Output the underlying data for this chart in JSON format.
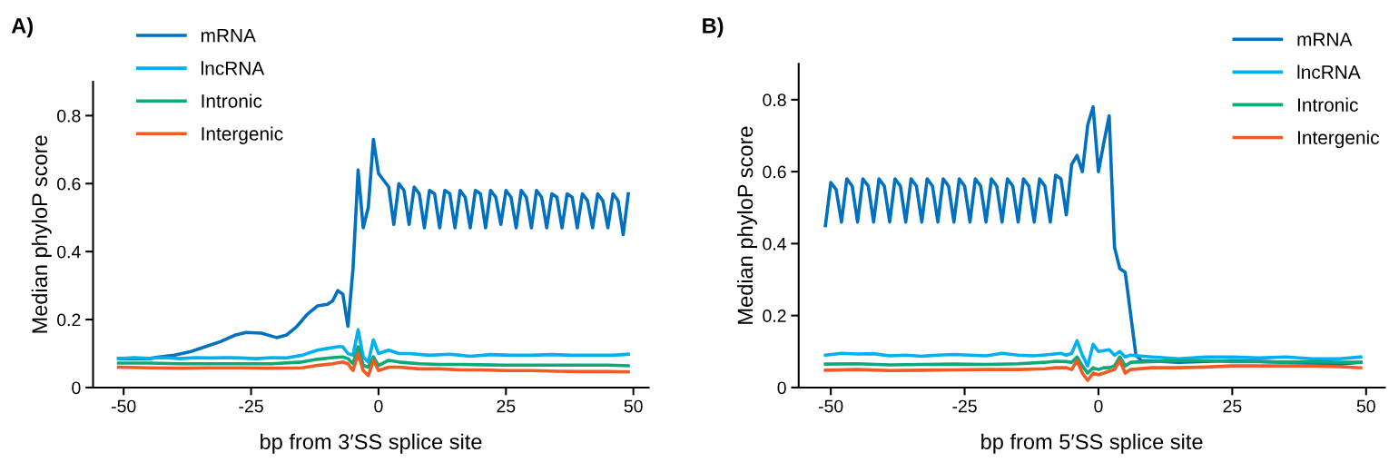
{
  "chart_data": [
    {
      "type": "line",
      "title": "A)",
      "xlabel": "bp from 3′SS splice site",
      "ylabel": "Median phyloP score",
      "xlim": [
        -56,
        53
      ],
      "ylim": [
        0,
        0.9
      ],
      "xticks": [
        -50,
        -25,
        0,
        25,
        50
      ],
      "yticks": [
        0,
        0.2,
        0.4,
        0.6,
        0.8
      ],
      "grid": false,
      "legend": "top left",
      "series": [
        {
          "name": "mRNA",
          "color": "#0070c0",
          "x": [
            -51,
            -45,
            -43,
            -40,
            -37,
            -34,
            -31,
            -28,
            -26,
            -23,
            -20,
            -18,
            -16,
            -14,
            -12,
            -10,
            -9,
            -8,
            -7,
            -6,
            -5,
            -4,
            -3,
            -2,
            -1,
            0,
            1,
            2,
            3,
            4,
            5,
            6,
            7,
            8,
            9,
            10,
            11,
            12,
            13,
            14,
            15,
            16,
            17,
            18,
            19,
            20,
            21,
            22,
            23,
            24,
            25,
            26,
            27,
            28,
            29,
            30,
            31,
            32,
            33,
            34,
            35,
            36,
            37,
            38,
            39,
            40,
            41,
            42,
            43,
            44,
            45,
            46,
            47,
            48,
            49
          ],
          "values": [
            0.085,
            0.085,
            0.09,
            0.095,
            0.105,
            0.12,
            0.135,
            0.155,
            0.162,
            0.16,
            0.147,
            0.155,
            0.18,
            0.215,
            0.24,
            0.245,
            0.255,
            0.285,
            0.275,
            0.18,
            0.35,
            0.64,
            0.47,
            0.53,
            0.73,
            0.63,
            0.61,
            0.59,
            0.48,
            0.6,
            0.58,
            0.48,
            0.59,
            0.57,
            0.47,
            0.58,
            0.57,
            0.47,
            0.58,
            0.57,
            0.47,
            0.58,
            0.56,
            0.47,
            0.58,
            0.57,
            0.47,
            0.58,
            0.56,
            0.48,
            0.58,
            0.56,
            0.47,
            0.58,
            0.56,
            0.47,
            0.58,
            0.56,
            0.47,
            0.57,
            0.56,
            0.47,
            0.57,
            0.56,
            0.47,
            0.57,
            0.55,
            0.47,
            0.57,
            0.55,
            0.47,
            0.57,
            0.55,
            0.45,
            0.57
          ]
        },
        {
          "name": "lncRNA",
          "color": "#00b0f0",
          "x": [
            -51,
            -48,
            -45,
            -42,
            -39,
            -36,
            -33,
            -30,
            -27,
            -24,
            -21,
            -18,
            -15,
            -12,
            -10,
            -8,
            -7,
            -6,
            -5,
            -4,
            -3,
            -2,
            -1,
            0,
            2,
            4,
            6,
            10,
            14,
            18,
            22,
            26,
            30,
            34,
            38,
            42,
            46,
            49
          ],
          "values": [
            0.085,
            0.088,
            0.086,
            0.088,
            0.085,
            0.088,
            0.087,
            0.088,
            0.087,
            0.085,
            0.088,
            0.087,
            0.095,
            0.11,
            0.115,
            0.12,
            0.12,
            0.1,
            0.095,
            0.17,
            0.09,
            0.075,
            0.14,
            0.1,
            0.11,
            0.1,
            0.1,
            0.095,
            0.098,
            0.092,
            0.097,
            0.095,
            0.095,
            0.097,
            0.095,
            0.095,
            0.095,
            0.098
          ]
        },
        {
          "name": "Intronic",
          "color": "#0fa878",
          "x": [
            -51,
            -45,
            -39,
            -33,
            -27,
            -21,
            -15,
            -12,
            -9,
            -7,
            -6,
            -5,
            -4,
            -3,
            -2,
            -1,
            0,
            2,
            4,
            8,
            12,
            16,
            20,
            25,
            30,
            35,
            40,
            45,
            49
          ],
          "values": [
            0.072,
            0.072,
            0.07,
            0.07,
            0.07,
            0.07,
            0.075,
            0.083,
            0.088,
            0.09,
            0.085,
            0.07,
            0.12,
            0.065,
            0.06,
            0.09,
            0.065,
            0.08,
            0.075,
            0.07,
            0.068,
            0.068,
            0.067,
            0.066,
            0.066,
            0.066,
            0.066,
            0.066,
            0.064
          ]
        },
        {
          "name": "Intergenic",
          "color": "#f15a22",
          "x": [
            -51,
            -45,
            -39,
            -33,
            -27,
            -21,
            -15,
            -12,
            -9,
            -7,
            -6,
            -5,
            -4,
            -3,
            -2,
            -1,
            0,
            2,
            4,
            8,
            12,
            16,
            20,
            25,
            30,
            35,
            40,
            45,
            49
          ],
          "values": [
            0.06,
            0.058,
            0.057,
            0.058,
            0.058,
            0.057,
            0.058,
            0.065,
            0.07,
            0.075,
            0.07,
            0.05,
            0.1,
            0.05,
            0.035,
            0.08,
            0.05,
            0.06,
            0.06,
            0.055,
            0.055,
            0.052,
            0.052,
            0.05,
            0.05,
            0.048,
            0.047,
            0.047,
            0.046
          ]
        }
      ]
    },
    {
      "type": "line",
      "title": "B)",
      "xlabel": "bp from 5′SS splice site",
      "ylabel": "Median phyloP score",
      "xlim": [
        -56,
        53.5
      ],
      "ylim": [
        0,
        0.9
      ],
      "xticks": [
        -50,
        -25,
        0,
        25,
        50
      ],
      "yticks": [
        0,
        0.2,
        0.4,
        0.6,
        0.8
      ],
      "grid": false,
      "legend": "top right",
      "series": [
        {
          "name": "mRNA",
          "color": "#0070c0",
          "x": [
            -51,
            -50,
            -49,
            -48,
            -47,
            -46,
            -45,
            -44,
            -43,
            -42,
            -41,
            -40,
            -39,
            -38,
            -37,
            -36,
            -35,
            -34,
            -33,
            -32,
            -31,
            -30,
            -29,
            -28,
            -27,
            -26,
            -25,
            -24,
            -23,
            -22,
            -21,
            -20,
            -19,
            -18,
            -17,
            -16,
            -15,
            -14,
            -13,
            -12,
            -11,
            -10,
            -9,
            -8,
            -7,
            -6,
            -5,
            -4,
            -3,
            -2,
            -1,
            0,
            1,
            2,
            3,
            4,
            5,
            7,
            8,
            15,
            25,
            35,
            45,
            49
          ],
          "values": [
            0.45,
            0.57,
            0.55,
            0.46,
            0.58,
            0.56,
            0.46,
            0.58,
            0.56,
            0.46,
            0.58,
            0.56,
            0.46,
            0.58,
            0.56,
            0.46,
            0.58,
            0.56,
            0.46,
            0.58,
            0.56,
            0.46,
            0.58,
            0.56,
            0.46,
            0.58,
            0.56,
            0.46,
            0.58,
            0.56,
            0.46,
            0.58,
            0.56,
            0.46,
            0.58,
            0.56,
            0.46,
            0.58,
            0.56,
            0.46,
            0.58,
            0.56,
            0.46,
            0.59,
            0.58,
            0.48,
            0.62,
            0.645,
            0.6,
            0.73,
            0.78,
            0.6,
            0.68,
            0.755,
            0.39,
            0.33,
            0.32,
            0.09,
            0.075,
            0.07,
            0.075,
            0.07,
            0.065,
            0.07
          ]
        },
        {
          "name": "lncRNA",
          "color": "#00b0f0",
          "x": [
            -51,
            -48,
            -45,
            -42,
            -39,
            -36,
            -33,
            -30,
            -27,
            -24,
            -21,
            -18,
            -15,
            -12,
            -9,
            -7,
            -6,
            -5,
            -4,
            -3,
            -2,
            -1,
            0,
            2,
            3,
            4,
            5,
            6,
            10,
            15,
            20,
            25,
            30,
            35,
            40,
            45,
            49
          ],
          "values": [
            0.09,
            0.095,
            0.093,
            0.094,
            0.088,
            0.09,
            0.087,
            0.09,
            0.092,
            0.09,
            0.088,
            0.095,
            0.09,
            0.088,
            0.092,
            0.095,
            0.09,
            0.095,
            0.13,
            0.09,
            0.06,
            0.12,
            0.1,
            0.105,
            0.09,
            0.1,
            0.085,
            0.09,
            0.085,
            0.08,
            0.085,
            0.085,
            0.082,
            0.085,
            0.08,
            0.08,
            0.085
          ]
        },
        {
          "name": "Intronic",
          "color": "#0fa878",
          "x": [
            -51,
            -45,
            -39,
            -33,
            -27,
            -21,
            -15,
            -10,
            -8,
            -6,
            -5,
            -4,
            -3,
            -2,
            -1,
            0,
            1,
            2,
            3,
            4,
            5,
            6,
            10,
            15,
            20,
            25,
            30,
            35,
            40,
            45,
            49
          ],
          "values": [
            0.065,
            0.066,
            0.063,
            0.064,
            0.065,
            0.064,
            0.066,
            0.07,
            0.073,
            0.072,
            0.07,
            0.085,
            0.06,
            0.04,
            0.055,
            0.05,
            0.055,
            0.055,
            0.06,
            0.085,
            0.06,
            0.07,
            0.072,
            0.075,
            0.075,
            0.072,
            0.072,
            0.07,
            0.072,
            0.07,
            0.07
          ]
        },
        {
          "name": "Intergenic",
          "color": "#f15a22",
          "x": [
            -51,
            -45,
            -39,
            -33,
            -27,
            -21,
            -15,
            -10,
            -8,
            -6,
            -5,
            -4,
            -3,
            -2,
            -1,
            0,
            1,
            2,
            3,
            4,
            5,
            6,
            10,
            15,
            20,
            25,
            30,
            35,
            40,
            45,
            49
          ],
          "values": [
            0.048,
            0.05,
            0.047,
            0.048,
            0.049,
            0.05,
            0.05,
            0.052,
            0.055,
            0.055,
            0.05,
            0.075,
            0.04,
            0.02,
            0.04,
            0.035,
            0.04,
            0.045,
            0.05,
            0.075,
            0.04,
            0.05,
            0.055,
            0.055,
            0.057,
            0.06,
            0.06,
            0.06,
            0.06,
            0.058,
            0.055
          ]
        }
      ]
    }
  ]
}
